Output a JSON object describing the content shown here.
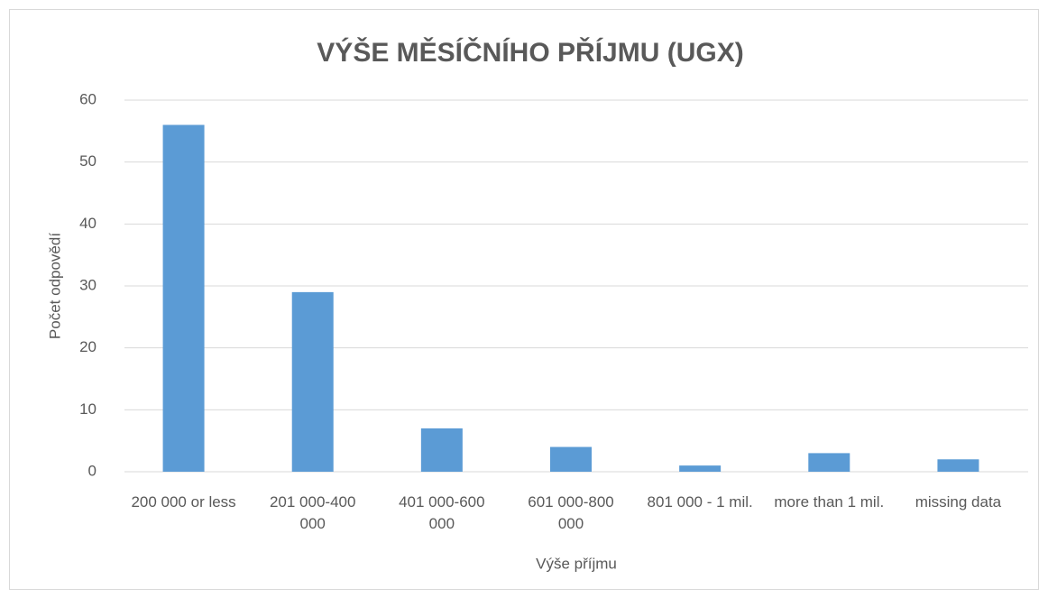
{
  "chart_data": {
    "type": "bar",
    "title": "VÝŠE MĚSÍČNÍHO PŘÍJMU (UGX)",
    "x_label": "Výše příjmu",
    "y_label": "Počet odpovědí",
    "categories": [
      "200 000  or less",
      "201 000-400 000",
      "401 000-600 000",
      "601 000-800 000",
      "801 000 - 1 mil.",
      "more than 1 mil.",
      "missing data"
    ],
    "values": [
      56,
      29,
      7,
      4,
      1,
      3,
      2
    ],
    "color": "#5b9bd5",
    "ylim": [
      0,
      60
    ],
    "yticks": [
      0,
      10,
      20,
      30,
      40,
      50,
      60
    ],
    "grid": true
  }
}
